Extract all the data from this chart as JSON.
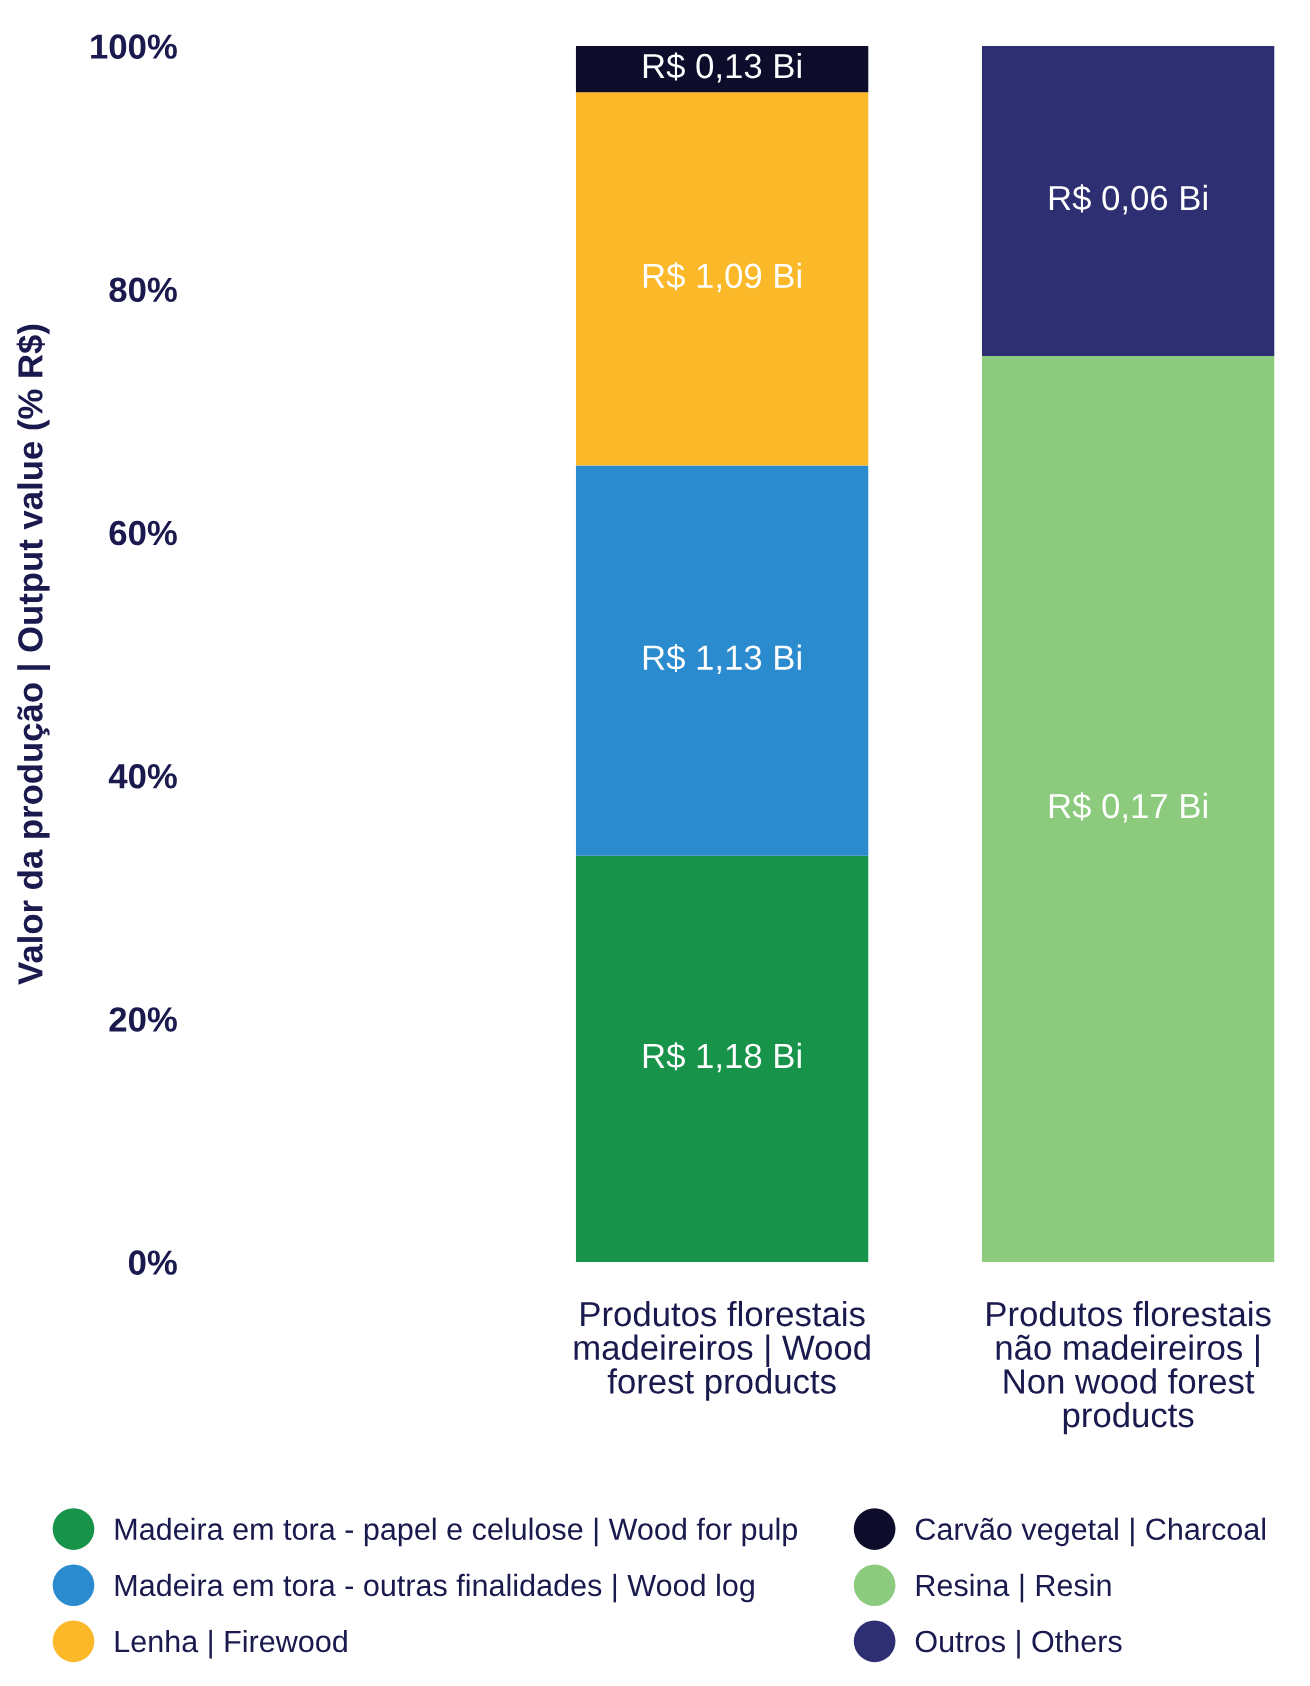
{
  "chart_data": {
    "type": "bar",
    "stacked": true,
    "categories": [
      "Produtos florestais madeireiros | Wood forest products",
      "Produtos florestais não madeireiros | Non wood forest products"
    ],
    "ylabel": "Valor da produção | Output value (% R$)",
    "ylim": [
      0,
      100
    ],
    "yticks": [
      {
        "value": 0,
        "label": "0%"
      },
      {
        "value": 20,
        "label": "20%"
      },
      {
        "value": 40,
        "label": "40%"
      },
      {
        "value": 60,
        "label": "60%"
      },
      {
        "value": 80,
        "label": "80%"
      },
      {
        "value": 100,
        "label": "100%"
      }
    ],
    "grid": false,
    "legend": "bottom",
    "series": [
      {
        "name": "Madeira em tora - papel e celulose | Wood for pulp",
        "color": "#17934a",
        "values": [
          33.4,
          null
        ],
        "value_labels": [
          "R$ 1,18 Bi",
          null
        ]
      },
      {
        "name": "Madeira em tora - outras finalidades | Wood log",
        "color": "#2a8bcf",
        "values": [
          32.1,
          null
        ],
        "value_labels": [
          "R$ 1,13 Bi",
          null
        ]
      },
      {
        "name": "Lenha | Firewood",
        "color": "#fbb829",
        "values": [
          30.7,
          null
        ],
        "value_labels": [
          "R$ 1,09 Bi",
          null
        ]
      },
      {
        "name": "Carvão vegetal | Charcoal",
        "color": "#0d0d2b",
        "values": [
          3.8,
          null
        ],
        "value_labels": [
          "R$ 0,13 Bi",
          null
        ]
      },
      {
        "name": "Resina | Resin",
        "color": "#8ccb7e",
        "values": [
          null,
          74.5
        ],
        "value_labels": [
          null,
          "R$ 0,17 Bi"
        ]
      },
      {
        "name": "Outros | Others",
        "color": "#2e2e72",
        "values": [
          null,
          25.5
        ],
        "value_labels": [
          null,
          "R$ 0,06 Bi"
        ]
      }
    ]
  }
}
